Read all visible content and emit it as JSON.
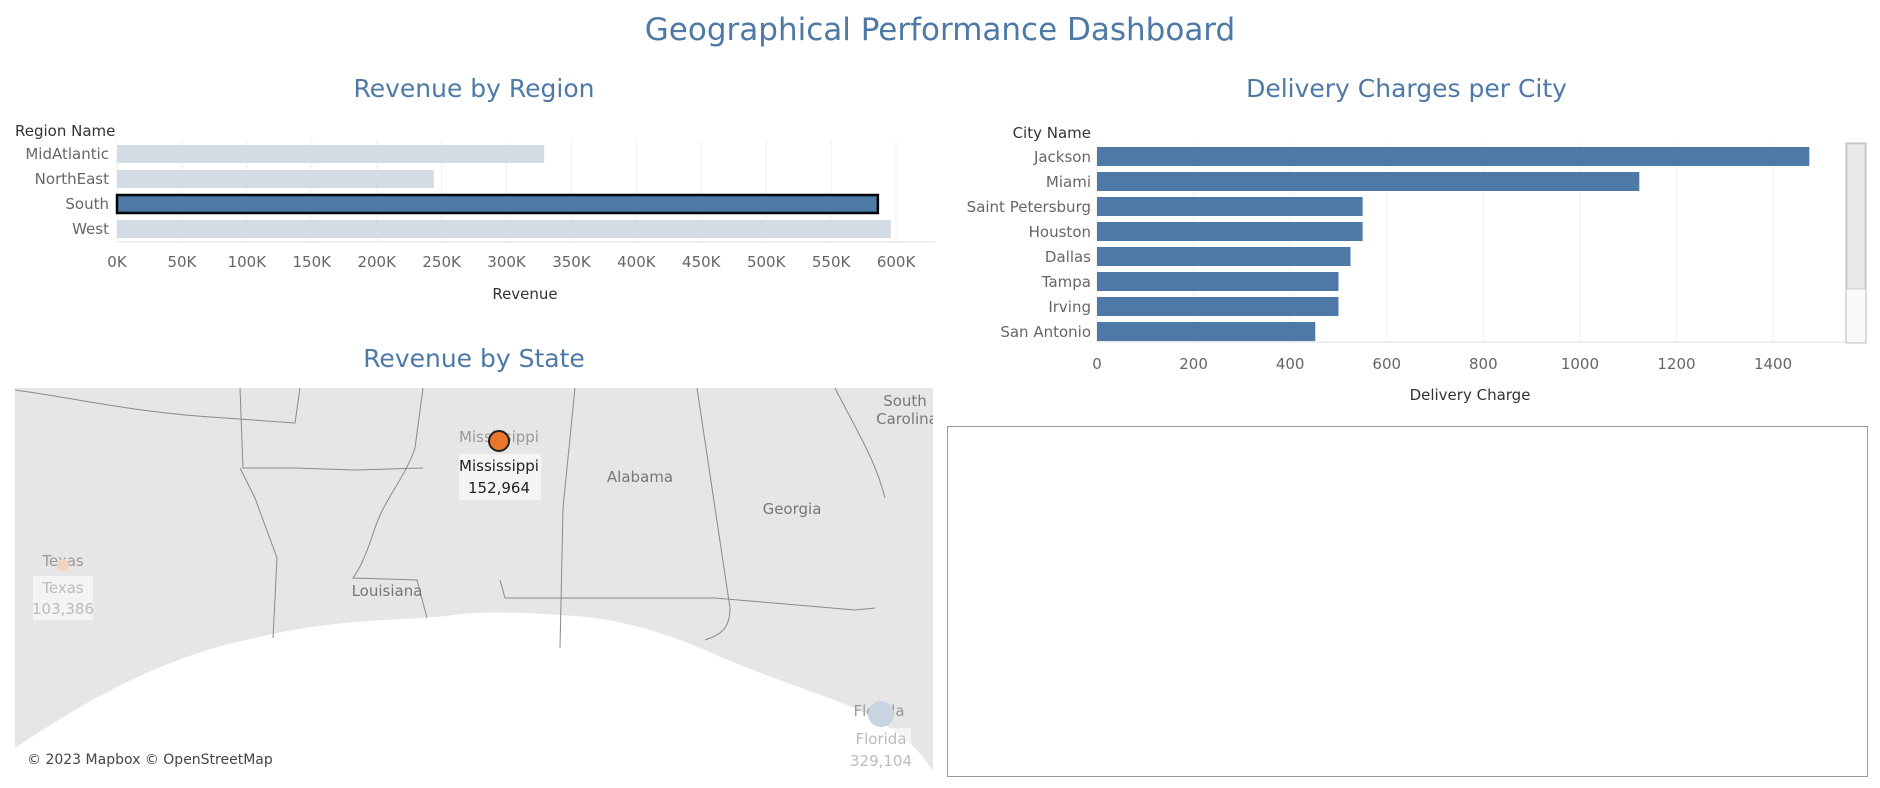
{
  "dashboard": {
    "title": "Geographical Performance Dashboard"
  },
  "revenue_by_region": {
    "title": "Revenue by Region",
    "row_header": "Region Name",
    "xlabel": "Revenue",
    "ticks": [
      "0K",
      "50K",
      "100K",
      "150K",
      "200K",
      "250K",
      "300K",
      "350K",
      "400K",
      "450K",
      "500K",
      "550K",
      "600K"
    ]
  },
  "delivery_by_city": {
    "title": "Delivery Charges per City",
    "row_header": "City Name",
    "xlabel": "Delivery Charge",
    "ticks": [
      "0",
      "200",
      "400",
      "600",
      "800",
      "1000",
      "1200",
      "1400"
    ]
  },
  "revenue_by_state": {
    "title": "Revenue by State",
    "credit": "© 2023 Mapbox © OpenStreetMap",
    "map_labels": [
      "Mississippi",
      "Alabama",
      "Georgia",
      "Louisiana",
      "Texas",
      "Florida",
      "South",
      "Carolina"
    ]
  },
  "colors": {
    "accent": "#4e79a7",
    "muted": "#d3dbe5",
    "highlight": "#e8762c"
  },
  "chart_data": [
    {
      "type": "bar",
      "title": "Revenue by Region",
      "xlabel": "Revenue",
      "ylabel": "Region Name",
      "categories": [
        "MidAtlantic",
        "NorthEast",
        "South",
        "West"
      ],
      "values": [
        329000,
        244000,
        586000,
        596000
      ],
      "selected": "South",
      "xlim": [
        0,
        630000
      ]
    },
    {
      "type": "bar",
      "title": "Delivery Charges per City",
      "xlabel": "Delivery Charge",
      "ylabel": "City Name",
      "categories": [
        "Jackson",
        "Miami",
        "Saint Petersburg",
        "Houston",
        "Dallas",
        "Tampa",
        "Irving",
        "San Antonio"
      ],
      "values": [
        1475,
        1123,
        550,
        550,
        525,
        500,
        500,
        452
      ],
      "xlim": [
        0,
        1580
      ]
    },
    {
      "type": "scatter",
      "title": "Revenue by State",
      "points": [
        {
          "state": "Mississippi",
          "value": "152,964",
          "selected": true
        },
        {
          "state": "Texas",
          "value": "103,386",
          "selected": false
        },
        {
          "state": "Florida",
          "value": "329,104",
          "selected": false
        }
      ]
    }
  ]
}
